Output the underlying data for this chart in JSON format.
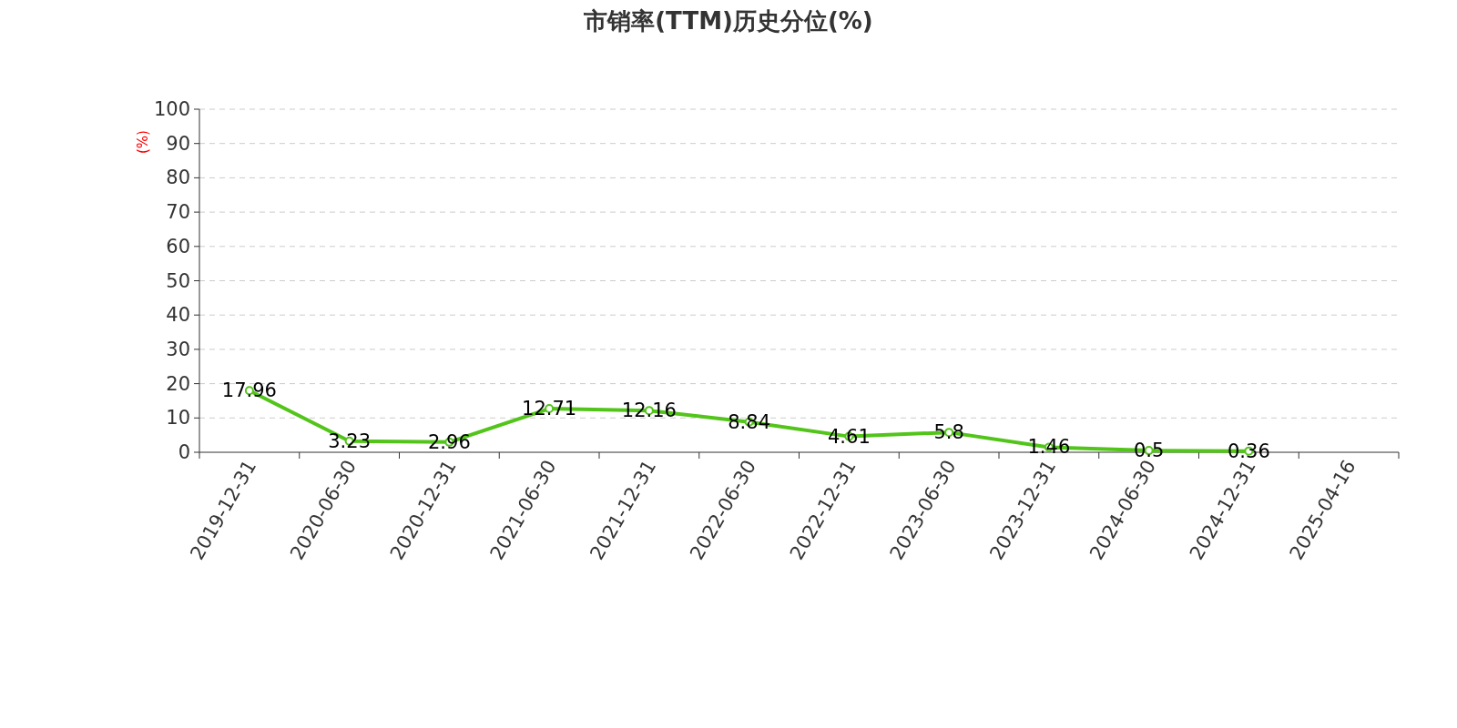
{
  "chart_data": {
    "type": "line",
    "title": "市销率(TTM)历史分位(%)",
    "ylabel": "(%)",
    "categories": [
      "2019-12-31",
      "2020-06-30",
      "2020-12-31",
      "2021-06-30",
      "2021-12-31",
      "2022-06-30",
      "2022-12-31",
      "2023-06-30",
      "2023-12-31",
      "2024-06-30",
      "2024-12-31",
      "2025-04-16"
    ],
    "series": [
      {
        "color": "#52c41a",
        "values": [
          17.96,
          3.23,
          2.96,
          12.71,
          12.16,
          8.84,
          4.61,
          5.8,
          1.46,
          0.5,
          0.36,
          null
        ]
      }
    ],
    "ylim": [
      0,
      100
    ],
    "yticks": [
      0,
      10,
      20,
      30,
      40,
      50,
      60,
      70,
      80,
      90,
      100
    ],
    "grid": "y",
    "data_labels": true,
    "marker": "circle"
  }
}
